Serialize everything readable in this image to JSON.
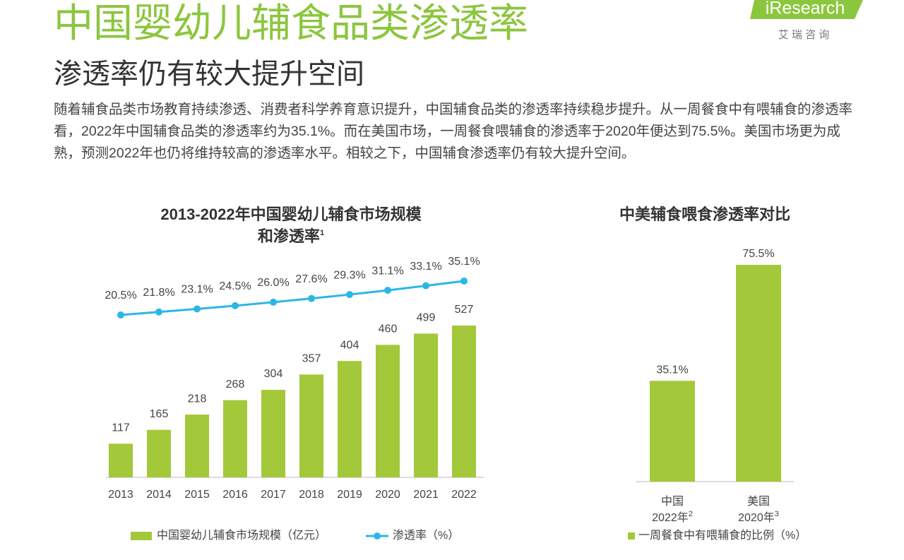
{
  "header": {
    "title": "中国婴幼儿辅食品类渗透率",
    "subtitle": "渗透率仍有较大提升空间",
    "logo": "iResearch",
    "logo_cn": "艾 瑞 咨 询"
  },
  "body": "随着辅食品类市场教育持续渗透、消费者科学养育意识提升，中国辅食品类的渗透率持续稳步提升。从一周餐食中有喂辅食的渗透率看，2022年中国辅食品类的渗透率约为35.1%。而在美国市场，一周餐食喂辅食的渗透率于2020年便达到75.5%。美国市场更为成熟，预测2022年也仍将维持较高的渗透率水平。相较之下，中国辅食渗透率仍有较大提升空间。",
  "chart_data": [
    {
      "type": "bar-line",
      "title": [
        "2013-2022年中国婴幼儿辅食市场规模",
        "和渗透率"
      ],
      "title_note": "1",
      "categories": [
        "2013",
        "2014",
        "2015",
        "2016",
        "2017",
        "2018",
        "2019",
        "2020",
        "2021",
        "2022"
      ],
      "series": [
        {
          "name": "中国婴幼儿辅食市场规模（亿元）",
          "type": "bar",
          "color": "#a3c83a",
          "values": [
            117,
            165,
            218,
            268,
            304,
            357,
            404,
            460,
            499,
            527
          ]
        },
        {
          "name": "渗透率（%）",
          "type": "line",
          "axis": "y2",
          "color": "#2bb7e6",
          "values": [
            20.5,
            21.8,
            23.1,
            24.5,
            26.0,
            27.6,
            29.3,
            31.1,
            33.1,
            35.1
          ],
          "value_labels": [
            "20.5%",
            "21.8%",
            "23.1%",
            "24.5%",
            "26.0%",
            "27.6%",
            "29.3%",
            "31.1%",
            "33.1%",
            "35.1%"
          ]
        }
      ]
    },
    {
      "type": "bar",
      "title": "中美辅食喂食渗透率对比",
      "categories": [
        "中国",
        "美国"
      ],
      "category_dates": [
        "2022年",
        "2020年"
      ],
      "category_notes": [
        "2",
        "3"
      ],
      "series": [
        {
          "name": "一周餐食中有喂辅食的比例（%）",
          "color": "#a3c83a",
          "values": [
            35.1,
            75.5
          ],
          "value_labels": [
            "35.1%",
            "75.5%"
          ]
        }
      ]
    }
  ]
}
